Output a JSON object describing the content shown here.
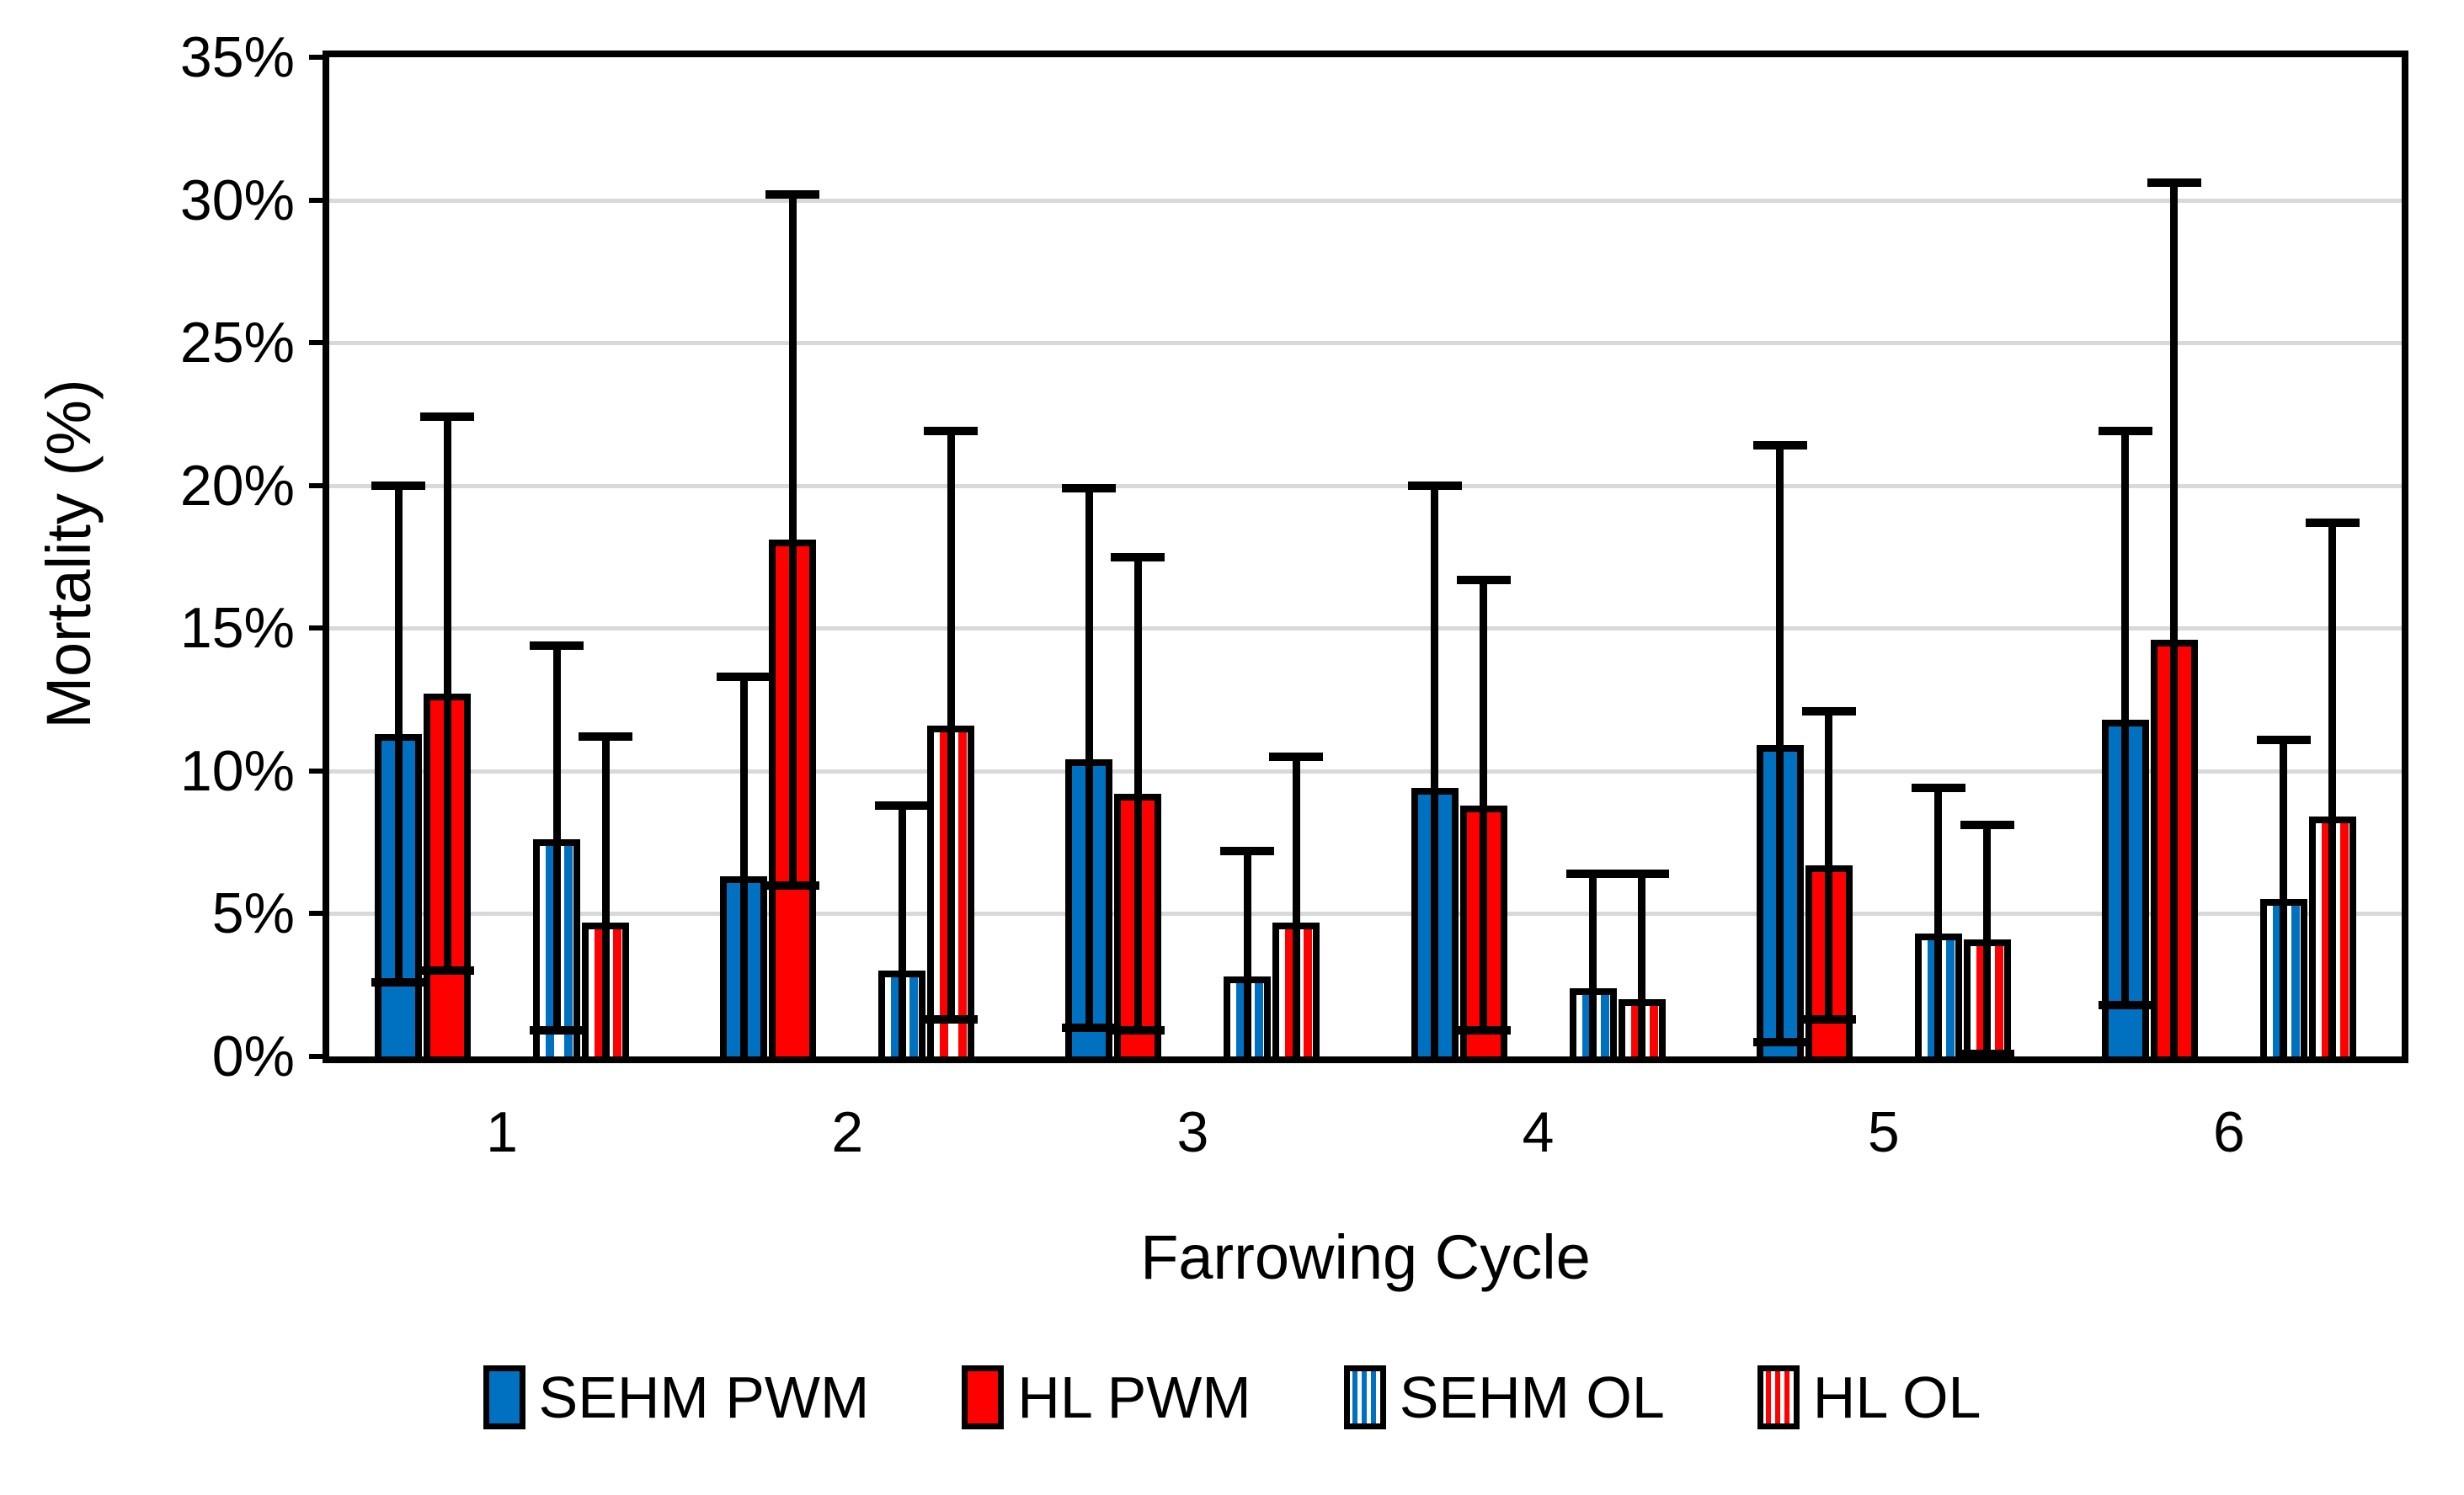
{
  "chart_data": {
    "type": "bar",
    "title": "",
    "xlabel": "Farrowing Cycle",
    "ylabel": "Mortality (%)",
    "ylim": [
      0,
      35
    ],
    "ytick_step": 5,
    "ytick_labels": [
      "0%",
      "5%",
      "10%",
      "15%",
      "20%",
      "25%",
      "30%",
      "35%"
    ],
    "grid": "horizontal",
    "legend_position": "bottom",
    "categories": [
      "1",
      "2",
      "3",
      "4",
      "5",
      "6"
    ],
    "error_bars": "plus-minus SD, clipped at 0",
    "series": [
      {
        "name": "SEHM PWM",
        "pattern": "solid",
        "color": "#0070C0",
        "values": [
          11.3,
          6.3,
          10.4,
          9.4,
          10.9,
          11.8
        ],
        "err_high": [
          20.0,
          13.3,
          19.9,
          20.0,
          21.4,
          21.9
        ],
        "err_low": [
          2.6,
          0,
          1.0,
          0,
          0.5,
          1.8
        ]
      },
      {
        "name": "HL PWM",
        "pattern": "solid",
        "color": "#FF0000",
        "values": [
          12.7,
          18.1,
          9.2,
          8.8,
          6.7,
          14.6
        ],
        "err_high": [
          22.4,
          30.2,
          17.5,
          16.7,
          12.1,
          30.6
        ],
        "err_low": [
          3.0,
          6.0,
          0.9,
          0.9,
          1.3,
          0
        ]
      },
      {
        "name": "SEHM OL",
        "pattern": "striped",
        "color": "#0070C0",
        "values": [
          7.6,
          3.0,
          2.8,
          2.4,
          4.3,
          5.5
        ],
        "err_high": [
          14.4,
          8.8,
          7.2,
          6.4,
          9.4,
          11.1
        ],
        "err_low": [
          0.9,
          0,
          0,
          0,
          0,
          0
        ]
      },
      {
        "name": "HL OL",
        "pattern": "striped",
        "color": "#FF0000",
        "values": [
          4.7,
          11.6,
          4.7,
          2.0,
          4.1,
          8.4
        ],
        "err_high": [
          11.2,
          21.9,
          10.5,
          6.4,
          8.1,
          18.7
        ],
        "err_low": [
          0,
          1.3,
          0,
          0,
          0.1,
          0
        ]
      }
    ],
    "colors": {
      "axis": "#000000",
      "gridline": "#d9d9d9",
      "background": "#ffffff"
    }
  }
}
